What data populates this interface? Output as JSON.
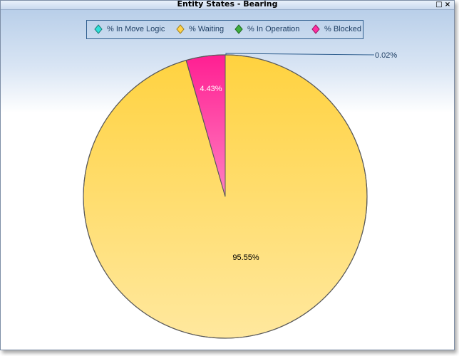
{
  "window": {
    "title": "Entity States - Bearing"
  },
  "chart_data": {
    "type": "pie",
    "title": "Entity States - Bearing",
    "legend_position": "top",
    "series": [
      {
        "name": "% In Move Logic",
        "value": 0.0,
        "color": "#2ee0d8"
      },
      {
        "name": "% Waiting",
        "value": 95.55,
        "color": "#ffd34a"
      },
      {
        "name": "% In Operation",
        "value": 0.02,
        "color": "#3fae3f"
      },
      {
        "name": "% Blocked",
        "value": 4.43,
        "color": "#ff2fa0"
      }
    ],
    "labels": {
      "waiting": "95.55%",
      "blocked": "4.43%",
      "in_operation": "0.02%"
    }
  }
}
